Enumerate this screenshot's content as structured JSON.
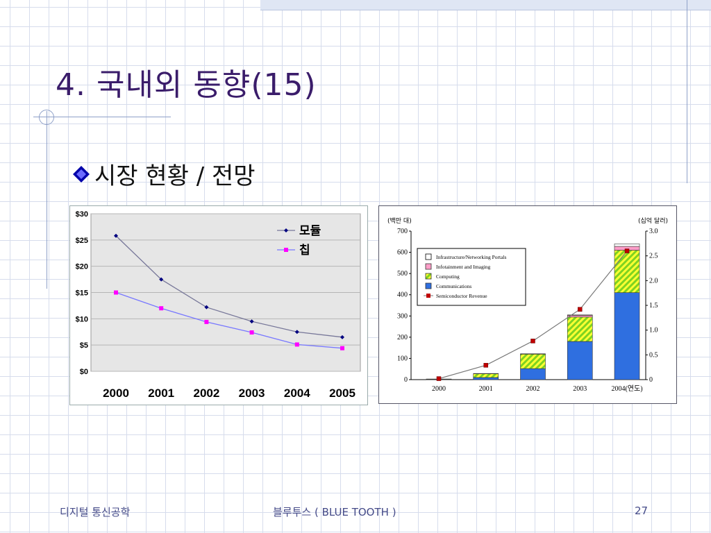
{
  "slide": {
    "title": "4. 국내외 동향(15)",
    "bullet": "시장 현황 / 전망"
  },
  "footer": {
    "left": "디지털 통신공학",
    "center": "블루투스 ( BLUE TOOTH )",
    "page": "27"
  },
  "colors": {
    "title": "#3a1c6a",
    "module_series": "#000080",
    "chip_series": "#ff00ff",
    "communications": "#2f6fe0",
    "computing": "#7ed321",
    "infotainment": "#ff9ec8",
    "revenue": "#c00000"
  },
  "chart_data": [
    {
      "type": "line",
      "x": [
        "2000",
        "2001",
        "2002",
        "2003",
        "2004",
        "2005"
      ],
      "series": [
        {
          "name": "모듈",
          "values": [
            25.8,
            17.5,
            12.2,
            9.5,
            7.5,
            6.5
          ]
        },
        {
          "name": "칩",
          "values": [
            15,
            12,
            9.4,
            7.4,
            5.1,
            4.4
          ]
        }
      ],
      "ylim": [
        0,
        30
      ],
      "yticks": [
        "$0",
        "$5",
        "$10",
        "$15",
        "$20",
        "$25",
        "$30"
      ],
      "grid": true,
      "legend": "top-right"
    },
    {
      "type": "bar",
      "categories": [
        "2000",
        "2001",
        "2002",
        "2003",
        "2004(연도)"
      ],
      "stacked": true,
      "series": [
        {
          "name": "Communications",
          "values": [
            2,
            10,
            52,
            180,
            410
          ]
        },
        {
          "name": "Computing",
          "values": [
            1,
            18,
            68,
            115,
            200
          ]
        },
        {
          "name": "Infotainment and Imaging",
          "values": [
            0,
            1,
            2,
            8,
            18
          ]
        },
        {
          "name": "Infrastructure/Networking Portals",
          "values": [
            0,
            0,
            0,
            2,
            12
          ]
        }
      ],
      "line_series": {
        "name": "Semiconductor Revenue",
        "values": [
          0.02,
          0.29,
          0.78,
          1.42,
          2.6
        ]
      },
      "ylabel_left": "(백만 대)",
      "ylabel_right": "(십억 달러)",
      "ylim_left": [
        0,
        700
      ],
      "ylim_right": [
        0,
        3.0
      ],
      "yticks_left": [
        "0",
        "100",
        "200",
        "300",
        "400",
        "500",
        "600",
        "700"
      ],
      "yticks_right": [
        "0",
        "0.5",
        "1.0",
        "1.5",
        "2.0",
        "2.5",
        "3.0"
      ],
      "legend": "top-left"
    }
  ]
}
